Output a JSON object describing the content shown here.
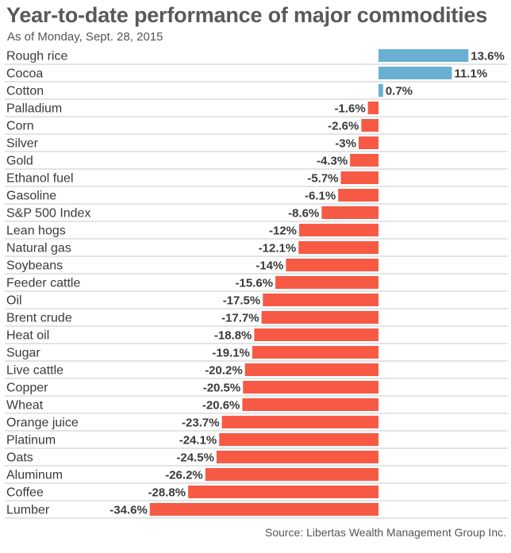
{
  "chart_data": {
    "type": "bar",
    "orientation": "horizontal",
    "title": "Year-to-date performance of major commodities",
    "subtitle": "As of Monday, Sept. 28, 2015",
    "source": "Source: Libertas Wealth Management Group Inc.",
    "value_suffix": "%",
    "xlim": [
      -34.6,
      13.6
    ],
    "grid": false,
    "colors": {
      "positive": "#6ab0d2",
      "negative": "#f65a45",
      "row_rule": "#c8c8c8"
    },
    "categories": [
      "Rough rice",
      "Cocoa",
      "Cotton",
      "Palladium",
      "Corn",
      "Silver",
      "Gold",
      "Ethanol fuel",
      "Gasoline",
      "S&P 500 Index",
      "Lean hogs",
      "Natural gas",
      "Soybeans",
      "Feeder cattle",
      "Oil",
      "Brent crude",
      "Heat oil",
      "Sugar",
      "Live cattle",
      "Copper",
      "Wheat",
      "Orange juice",
      "Platinum",
      "Oats",
      "Aluminum",
      "Coffee",
      "Lumber"
    ],
    "values": [
      13.6,
      11.1,
      0.7,
      -1.6,
      -2.6,
      -3,
      -4.3,
      -5.7,
      -6.1,
      -8.6,
      -12,
      -12.1,
      -14,
      -15.6,
      -17.5,
      -17.7,
      -18.8,
      -19.1,
      -20.2,
      -20.5,
      -20.6,
      -23.7,
      -24.1,
      -24.5,
      -26.2,
      -28.8,
      -34.6
    ]
  }
}
